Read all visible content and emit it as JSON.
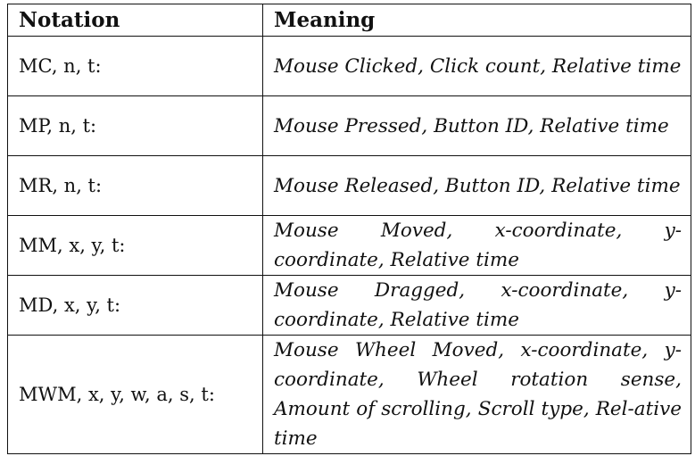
{
  "table": {
    "headers": {
      "notation": "Notation",
      "meaning": "Meaning"
    },
    "rows": [
      {
        "notation": "MC, n, t:",
        "meaning": "Mouse Clicked, Click count, Relative time"
      },
      {
        "notation": "MP, n, t:",
        "meaning": "Mouse Pressed, Button ID, Relative time"
      },
      {
        "notation": "MR, n, t:",
        "meaning": "Mouse Released, Button ID, Relative time"
      },
      {
        "notation": "MM, x, y, t:",
        "meaning": "Mouse Moved, x-coordinate, y-coordinate, Relative time"
      },
      {
        "notation": "MD, x, y, t:",
        "meaning": "Mouse Dragged, x-coordinate, y-coordinate, Relative time"
      },
      {
        "notation": "MWM, x, y, w, a, s, t:",
        "meaning": "Mouse Wheel Moved, x-coordinate, y-coordinate, Wheel rotation sense, Amount of scrolling, Scroll type, Rel-ative time"
      }
    ]
  }
}
